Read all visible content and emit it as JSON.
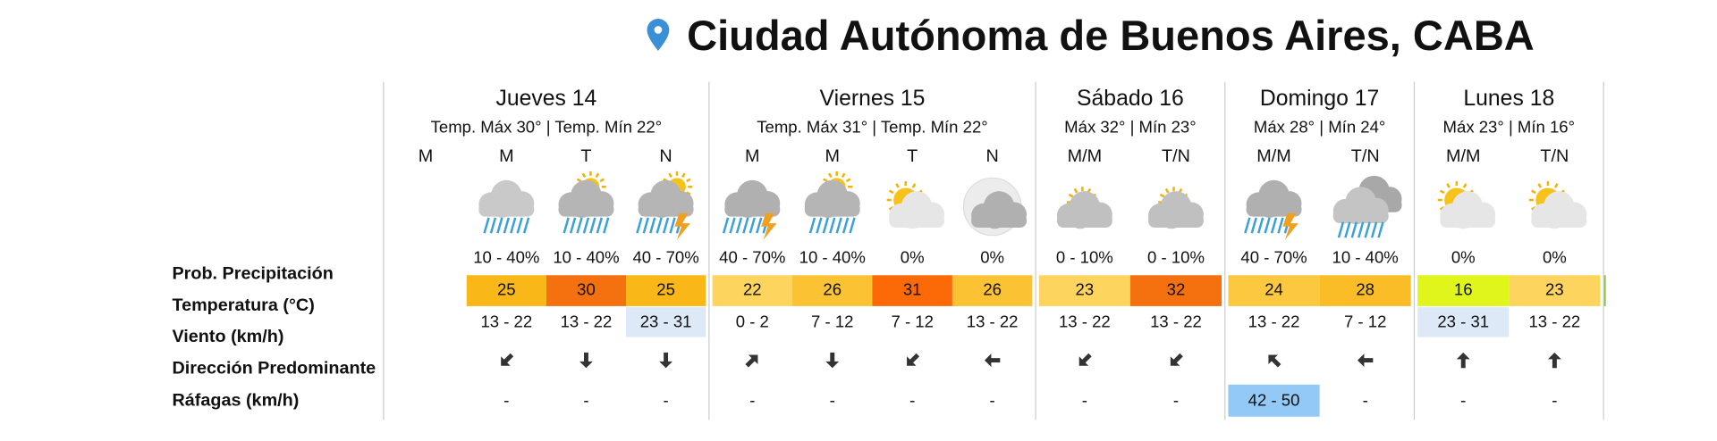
{
  "title": "Ciudad Autónoma de Buenos Aires, CABA",
  "row_labels": [
    "Prob. Precipitación",
    "Temperatura (°C)",
    "Viento (km/h)",
    "Dirección Predominante",
    "Ráfagas (km/h)"
  ],
  "days": [
    {
      "name": "Jueves 14",
      "summary": "Temp. Máx 30° | Temp. Mín 22°",
      "periods": [
        {
          "label": "M"
        },
        {
          "label": "M",
          "precip": "10 - 40%",
          "temp": 25,
          "temp_color": "#f9b718",
          "wind": "13 - 22",
          "gusts": "-"
        },
        {
          "label": "T",
          "precip": "10 - 40%",
          "temp": 30,
          "temp_color": "#f5700f",
          "wind": "13 - 22",
          "gusts": "-"
        },
        {
          "label": "N",
          "precip": "40 - 70%",
          "temp": 25,
          "temp_color": "#f9b718",
          "wind": "23 - 31",
          "wind_color": "#dde9f7",
          "gusts": "-"
        }
      ]
    },
    {
      "name": "Viernes 15",
      "summary": "Temp. Máx 31° | Temp. Mín 22°",
      "periods": [
        {
          "label": "M",
          "precip": "40 - 70%",
          "temp": 22,
          "temp_color": "#fdd55e",
          "wind": "0 - 2",
          "gusts": "-"
        },
        {
          "label": "M",
          "precip": "10 - 40%",
          "temp": 26,
          "temp_color": "#fbc234",
          "wind": "7 - 12",
          "gusts": "-"
        },
        {
          "label": "T",
          "precip": "0%",
          "temp": 31,
          "temp_color": "#fc6a08",
          "wind": "7 - 12",
          "gusts": "-"
        },
        {
          "label": "N",
          "precip": "0%",
          "temp": 26,
          "temp_color": "#fbc234",
          "wind": "13 - 22",
          "gusts": "-"
        }
      ]
    },
    {
      "name": "Sábado 16",
      "summary": "Máx 32° | Mín 23°",
      "periods": [
        {
          "label": "M/M",
          "precip": "0 - 10%",
          "temp": 23,
          "temp_color": "#fdd55e",
          "wind": "13 - 22",
          "gusts": "-"
        },
        {
          "label": "T/N",
          "precip": "0 - 10%",
          "temp": 32,
          "temp_color": "#f5700f",
          "wind": "13 - 22",
          "gusts": "-"
        }
      ]
    },
    {
      "name": "Domingo 17",
      "summary": "Máx 28° | Mín 24°",
      "periods": [
        {
          "label": "M/M",
          "precip": "40 - 70%",
          "temp": 24,
          "temp_color": "#fcc840",
          "wind": "13 - 22",
          "gusts": "42 - 50",
          "gusts_color": "#93c9f6"
        },
        {
          "label": "T/N",
          "precip": "10 - 40%",
          "temp": 28,
          "temp_color": "#fbbd27",
          "wind": "7 - 12",
          "gusts": "-"
        }
      ]
    },
    {
      "name": "Lunes 18",
      "summary": "Máx 23° | Mín 16°",
      "periods": [
        {
          "label": "M/M",
          "precip": "0%",
          "temp": 16,
          "temp_color": "#e0f51c",
          "wind": "23 - 31",
          "wind_color": "#dde9f7",
          "gusts": "-"
        },
        {
          "label": "T/N",
          "precip": "0%",
          "temp": 23,
          "temp_color": "#fdd55e",
          "wind": "13 - 22",
          "gusts": "-"
        }
      ]
    }
  ]
}
